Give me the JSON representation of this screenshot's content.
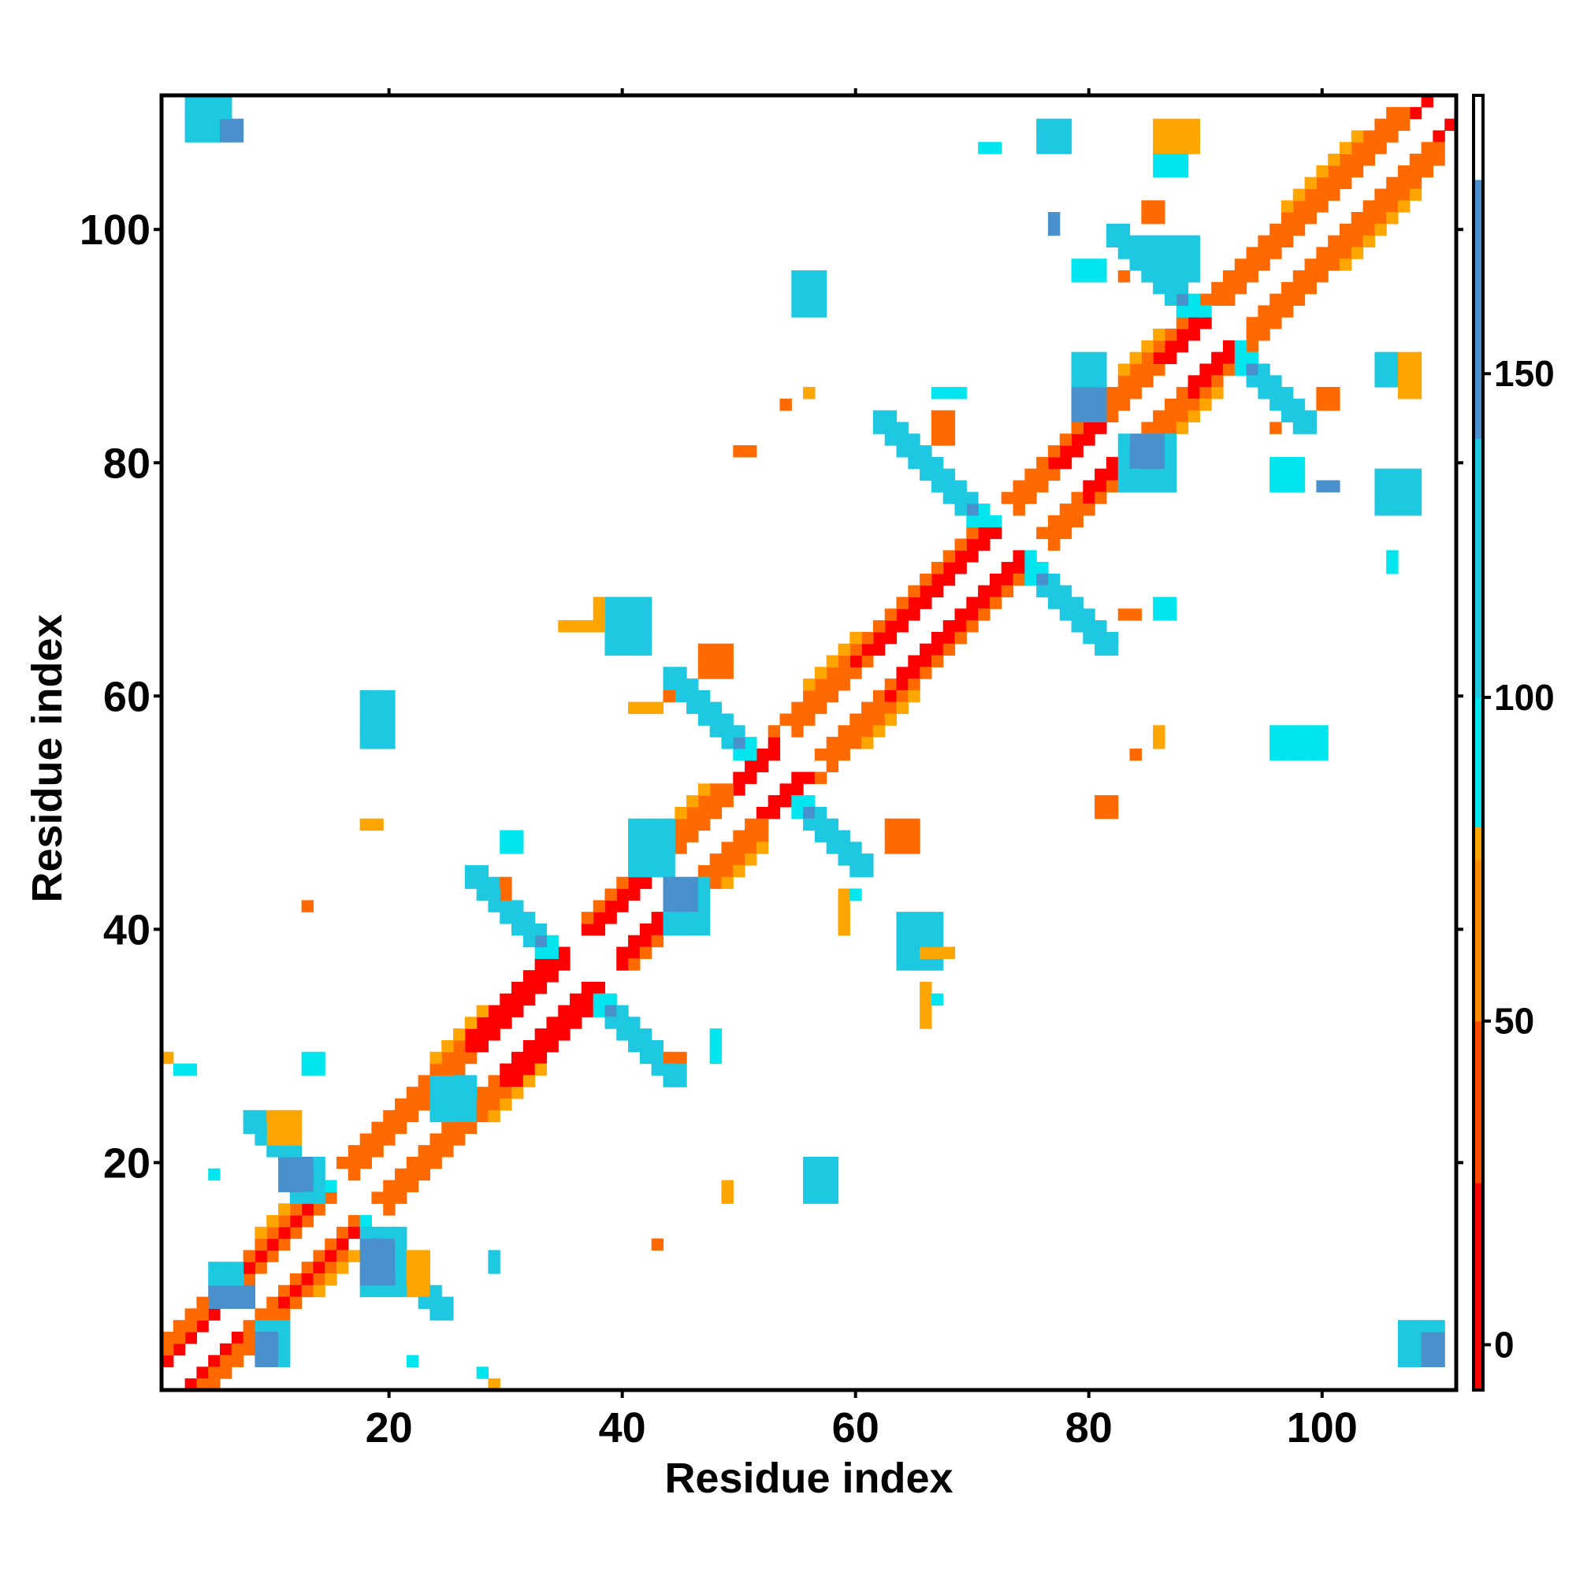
{
  "chart_data": {
    "type": "heatmap",
    "title": "",
    "xlabel": "Residue index",
    "ylabel": "Residue index",
    "xlim": [
      1,
      111
    ],
    "ylim": [
      1,
      111
    ],
    "x_ticks": [
      20,
      40,
      60,
      80,
      100
    ],
    "y_ticks": [
      20,
      40,
      60,
      80,
      100
    ],
    "grid": false,
    "legend": "right",
    "colorbar": {
      "ticks": [
        0,
        50,
        100,
        150
      ],
      "range": [
        -7,
        193
      ],
      "segments": [
        {
          "from": -7,
          "to": 25,
          "color": "#ff0000"
        },
        {
          "from": 25,
          "to": 50,
          "color": "#ff4a00"
        },
        {
          "from": 50,
          "to": 75,
          "color": "#ff8a00"
        },
        {
          "from": 75,
          "to": 80,
          "color": "#ffa500"
        },
        {
          "from": 80,
          "to": 100,
          "color": "#00e5ee"
        },
        {
          "from": 100,
          "to": 140,
          "color": "#1ec8e0"
        },
        {
          "from": 140,
          "to": 180,
          "color": "#4a90cc"
        },
        {
          "from": 180,
          "to": 193,
          "color": "#ffffff"
        }
      ]
    },
    "classes": {
      "R": {
        "value": 10,
        "color": "#ff0000"
      },
      "O": {
        "value": 45,
        "color": "#ff6a00"
      },
      "Y": {
        "value": 72,
        "color": "#ffa500"
      },
      "C": {
        "value": 95,
        "color": "#00e5ee"
      },
      "K": {
        "value": 118,
        "color": "#1ec8e0"
      },
      "B": {
        "value": 160,
        "color": "#4a90cc"
      }
    },
    "diagonal_bands": [
      {
        "offset": 2,
        "class": "R",
        "start": 1,
        "end": 6
      },
      {
        "offset": 2,
        "class": "O",
        "start": 6,
        "end": 15
      },
      {
        "offset": 2,
        "class": "O",
        "start": 17,
        "end": 28
      },
      {
        "offset": 2,
        "class": "R",
        "start": 28,
        "end": 35
      },
      {
        "offset": 2,
        "class": "R",
        "start": 38,
        "end": 44
      },
      {
        "offset": 2,
        "class": "O",
        "start": 44,
        "end": 50
      },
      {
        "offset": 2,
        "class": "R",
        "start": 50,
        "end": 53
      },
      {
        "offset": 2,
        "class": "O",
        "start": 55,
        "end": 62
      },
      {
        "offset": 2,
        "class": "R",
        "start": 62,
        "end": 72
      },
      {
        "offset": 2,
        "class": "O",
        "start": 74,
        "end": 78
      },
      {
        "offset": 2,
        "class": "R",
        "start": 78,
        "end": 82
      },
      {
        "offset": 2,
        "class": "O",
        "start": 82,
        "end": 87
      },
      {
        "offset": 2,
        "class": "R",
        "start": 87,
        "end": 90
      },
      {
        "offset": 2,
        "class": "O",
        "start": 92,
        "end": 108
      },
      {
        "offset": 2,
        "class": "R",
        "start": 108,
        "end": 110
      },
      {
        "offset": 3,
        "class": "O",
        "start": 1,
        "end": 8
      },
      {
        "offset": 3,
        "class": "R",
        "start": 8,
        "end": 14
      },
      {
        "offset": 3,
        "class": "O",
        "start": 17,
        "end": 26
      },
      {
        "offset": 3,
        "class": "R",
        "start": 27,
        "end": 35
      },
      {
        "offset": 3,
        "class": "R",
        "start": 37,
        "end": 43
      },
      {
        "offset": 3,
        "class": "O",
        "start": 43,
        "end": 50
      },
      {
        "offset": 3,
        "class": "R",
        "start": 50,
        "end": 53
      },
      {
        "offset": 3,
        "class": "O",
        "start": 55,
        "end": 60
      },
      {
        "offset": 3,
        "class": "R",
        "start": 60,
        "end": 71
      },
      {
        "offset": 3,
        "class": "O",
        "start": 74,
        "end": 77
      },
      {
        "offset": 3,
        "class": "R",
        "start": 77,
        "end": 81
      },
      {
        "offset": 3,
        "class": "O",
        "start": 81,
        "end": 86
      },
      {
        "offset": 3,
        "class": "R",
        "start": 86,
        "end": 89
      },
      {
        "offset": 3,
        "class": "O",
        "start": 91,
        "end": 107
      },
      {
        "offset": 4,
        "class": "O",
        "start": 1,
        "end": 12
      },
      {
        "offset": 4,
        "class": "O",
        "start": 16,
        "end": 27
      },
      {
        "offset": 4,
        "class": "R",
        "start": 27,
        "end": 33
      },
      {
        "offset": 4,
        "class": "O",
        "start": 37,
        "end": 48
      },
      {
        "offset": 4,
        "class": "O",
        "start": 53,
        "end": 70
      },
      {
        "offset": 4,
        "class": "O",
        "start": 73,
        "end": 88
      },
      {
        "offset": 4,
        "class": "O",
        "start": 90,
        "end": 106
      },
      {
        "offset": 5,
        "class": "Y",
        "start": 9,
        "end": 13
      },
      {
        "offset": 5,
        "class": "Y",
        "start": 24,
        "end": 28
      },
      {
        "offset": 5,
        "class": "Y",
        "start": 44,
        "end": 47
      },
      {
        "offset": 5,
        "class": "Y",
        "start": 56,
        "end": 60
      },
      {
        "offset": 5,
        "class": "Y",
        "start": 83,
        "end": 86
      },
      {
        "offset": 5,
        "class": "Y",
        "start": 97,
        "end": 103
      }
    ],
    "cross_arms": [
      {
        "center": [
          16,
          16
        ],
        "len_up": 7,
        "len_down": 8,
        "inner": "C"
      },
      {
        "center": [
          36,
          36
        ],
        "len_up": 8,
        "len_down": 8,
        "inner": "C"
      },
      {
        "center": [
          53,
          53
        ],
        "len_up": 8,
        "len_down": 7,
        "inner": "C"
      },
      {
        "center": [
          73,
          73
        ],
        "len_up": 10,
        "len_down": 8,
        "inner": "C"
      },
      {
        "center": [
          91,
          91
        ],
        "len_up": 8,
        "len_down": 7,
        "inner": "C"
      }
    ],
    "blobs": [
      {
        "class": "K",
        "x": [
          5,
          7
        ],
        "y": [
          8,
          11
        ]
      },
      {
        "class": "B",
        "x": [
          5,
          8
        ],
        "y": [
          8,
          9
        ]
      },
      {
        "class": "K",
        "x": [
          9,
          11
        ],
        "y": [
          3,
          6
        ]
      },
      {
        "class": "B",
        "x": [
          9,
          10
        ],
        "y": [
          3,
          5
        ]
      },
      {
        "class": "K",
        "x": [
          12,
          14
        ],
        "y": [
          17,
          20
        ]
      },
      {
        "class": "B",
        "x": [
          11,
          13
        ],
        "y": [
          18,
          20
        ]
      },
      {
        "class": "K",
        "x": [
          18,
          21
        ],
        "y": [
          9,
          14
        ]
      },
      {
        "class": "B",
        "x": [
          18,
          20
        ],
        "y": [
          10,
          13
        ]
      },
      {
        "class": "Y",
        "x": [
          10,
          12
        ],
        "y": [
          22,
          24
        ]
      },
      {
        "class": "Y",
        "x": [
          22,
          23
        ],
        "y": [
          9,
          12
        ]
      },
      {
        "class": "K",
        "x": [
          24,
          27
        ],
        "y": [
          24,
          27
        ]
      },
      {
        "class": "K",
        "x": [
          29,
          29
        ],
        "y": [
          11,
          12
        ]
      },
      {
        "class": "C",
        "x": [
          13,
          14
        ],
        "y": [
          28,
          29
        ]
      },
      {
        "class": "C",
        "x": [
          5,
          5
        ],
        "y": [
          19,
          19
        ]
      },
      {
        "class": "C",
        "x": [
          22,
          22
        ],
        "y": [
          3,
          3
        ]
      },
      {
        "class": "C",
        "x": [
          2,
          3
        ],
        "y": [
          28,
          28
        ]
      },
      {
        "class": "Y",
        "x": [
          1,
          1
        ],
        "y": [
          29,
          29
        ]
      },
      {
        "class": "C",
        "x": [
          28,
          28
        ],
        "y": [
          2,
          2
        ]
      },
      {
        "class": "Y",
        "x": [
          29,
          29
        ],
        "y": [
          1,
          1
        ]
      },
      {
        "class": "K",
        "x": [
          3,
          6
        ],
        "y": [
          108,
          111
        ]
      },
      {
        "class": "B",
        "x": [
          6,
          7
        ],
        "y": [
          108,
          109
        ]
      },
      {
        "class": "K",
        "x": [
          18,
          20
        ],
        "y": [
          56,
          60
        ]
      },
      {
        "class": "K",
        "x": [
          41,
          44
        ],
        "y": [
          45,
          49
        ]
      },
      {
        "class": "K",
        "x": [
          44,
          47
        ],
        "y": [
          40,
          44
        ]
      },
      {
        "class": "B",
        "x": [
          44,
          46
        ],
        "y": [
          42,
          44
        ]
      },
      {
        "class": "K",
        "x": [
          39,
          42
        ],
        "y": [
          64,
          68
        ]
      },
      {
        "class": "Y",
        "x": [
          35,
          37
        ],
        "y": [
          66,
          66
        ]
      },
      {
        "class": "Y",
        "x": [
          38,
          38
        ],
        "y": [
          66,
          68
        ]
      },
      {
        "class": "C",
        "x": [
          30,
          31
        ],
        "y": [
          47,
          48
        ]
      },
      {
        "class": "O",
        "x": [
          30,
          30
        ],
        "y": [
          43,
          44
        ]
      },
      {
        "class": "Y",
        "x": [
          18,
          19
        ],
        "y": [
          49,
          49
        ]
      },
      {
        "class": "O",
        "x": [
          13,
          13
        ],
        "y": [
          42,
          42
        ]
      },
      {
        "class": "Y",
        "x": [
          41,
          43
        ],
        "y": [
          59,
          59
        ]
      },
      {
        "class": "C",
        "x": [
          44,
          44
        ],
        "y": [
          60,
          60
        ]
      },
      {
        "class": "O",
        "x": [
          43,
          43
        ],
        "y": [
          13,
          13
        ]
      },
      {
        "class": "C",
        "x": [
          48,
          48
        ],
        "y": [
          29,
          31
        ]
      },
      {
        "class": "O",
        "x": [
          44,
          45
        ],
        "y": [
          29,
          29
        ]
      },
      {
        "class": "K",
        "x": [
          56,
          58
        ],
        "y": [
          17,
          20
        ]
      },
      {
        "class": "Y",
        "x": [
          49,
          49
        ],
        "y": [
          17,
          18
        ]
      },
      {
        "class": "K",
        "x": [
          55,
          57
        ],
        "y": [
          93,
          96
        ]
      },
      {
        "class": "Y",
        "x": [
          56,
          56
        ],
        "y": [
          86,
          86
        ]
      },
      {
        "class": "O",
        "x": [
          54,
          54
        ],
        "y": [
          85,
          85
        ]
      },
      {
        "class": "O",
        "x": [
          50,
          51
        ],
        "y": [
          81,
          81
        ]
      },
      {
        "class": "K",
        "x": [
          64,
          67
        ],
        "y": [
          37,
          41
        ]
      },
      {
        "class": "Y",
        "x": [
          66,
          68
        ],
        "y": [
          38,
          38
        ]
      },
      {
        "class": "Y",
        "x": [
          66,
          66
        ],
        "y": [
          32,
          35
        ]
      },
      {
        "class": "C",
        "x": [
          67,
          67
        ],
        "y": [
          34,
          34
        ]
      },
      {
        "class": "Y",
        "x": [
          59,
          59
        ],
        "y": [
          40,
          43
        ]
      },
      {
        "class": "C",
        "x": [
          60,
          60
        ],
        "y": [
          43,
          43
        ]
      },
      {
        "class": "O",
        "x": [
          63,
          65
        ],
        "y": [
          47,
          49
        ]
      },
      {
        "class": "O",
        "x": [
          47,
          49
        ],
        "y": [
          62,
          64
        ]
      },
      {
        "class": "O",
        "x": [
          44,
          44
        ],
        "y": [
          60,
          60
        ]
      },
      {
        "class": "K",
        "x": [
          79,
          81
        ],
        "y": [
          84,
          89
        ]
      },
      {
        "class": "B",
        "x": [
          79,
          81
        ],
        "y": [
          84,
          86
        ]
      },
      {
        "class": "K",
        "x": [
          83,
          87
        ],
        "y": [
          78,
          82
        ]
      },
      {
        "class": "B",
        "x": [
          84,
          86
        ],
        "y": [
          80,
          82
        ]
      },
      {
        "class": "O",
        "x": [
          83,
          84
        ],
        "y": [
          67,
          67
        ]
      },
      {
        "class": "C",
        "x": [
          86,
          87
        ],
        "y": [
          67,
          68
        ]
      },
      {
        "class": "O",
        "x": [
          67,
          68
        ],
        "y": [
          82,
          84
        ]
      },
      {
        "class": "C",
        "x": [
          67,
          69
        ],
        "y": [
          86,
          86
        ]
      },
      {
        "class": "K",
        "x": [
          76,
          78
        ],
        "y": [
          107,
          109
        ]
      },
      {
        "class": "C",
        "x": [
          71,
          72
        ],
        "y": [
          107,
          107
        ]
      },
      {
        "class": "B",
        "x": [
          77,
          77
        ],
        "y": [
          100,
          101
        ]
      },
      {
        "class": "C",
        "x": [
          79,
          81
        ],
        "y": [
          96,
          97
        ]
      },
      {
        "class": "O",
        "x": [
          83,
          83
        ],
        "y": [
          96,
          96
        ]
      },
      {
        "class": "K",
        "x": [
          85,
          89
        ],
        "y": [
          96,
          99
        ]
      },
      {
        "class": "O",
        "x": [
          85,
          86
        ],
        "y": [
          101,
          102
        ]
      },
      {
        "class": "Y",
        "x": [
          86,
          89
        ],
        "y": [
          107,
          109
        ]
      },
      {
        "class": "C",
        "x": [
          86,
          88
        ],
        "y": [
          105,
          106
        ]
      },
      {
        "class": "C",
        "x": [
          96,
          98
        ],
        "y": [
          78,
          80
        ]
      },
      {
        "class": "O",
        "x": [
          96,
          96
        ],
        "y": [
          83,
          83
        ]
      },
      {
        "class": "C",
        "x": [
          96,
          100
        ],
        "y": [
          55,
          57
        ]
      },
      {
        "class": "Y",
        "x": [
          86,
          86
        ],
        "y": [
          56,
          57
        ]
      },
      {
        "class": "O",
        "x": [
          84,
          84
        ],
        "y": [
          55,
          55
        ]
      },
      {
        "class": "O",
        "x": [
          81,
          82
        ],
        "y": [
          50,
          51
        ]
      },
      {
        "class": "K",
        "x": [
          105,
          108
        ],
        "y": [
          76,
          79
        ]
      },
      {
        "class": "B",
        "x": [
          100,
          101
        ],
        "y": [
          78,
          78
        ]
      },
      {
        "class": "C",
        "x": [
          106,
          106
        ],
        "y": [
          71,
          72
        ]
      },
      {
        "class": "K",
        "x": [
          105,
          106
        ],
        "y": [
          87,
          89
        ]
      },
      {
        "class": "Y",
        "x": [
          107,
          108
        ],
        "y": [
          86,
          89
        ]
      },
      {
        "class": "K",
        "x": [
          107,
          110
        ],
        "y": [
          3,
          6
        ]
      },
      {
        "class": "B",
        "x": [
          109,
          110
        ],
        "y": [
          3,
          5
        ]
      },
      {
        "class": "O",
        "x": [
          100,
          101
        ],
        "y": [
          85,
          86
        ]
      }
    ]
  }
}
